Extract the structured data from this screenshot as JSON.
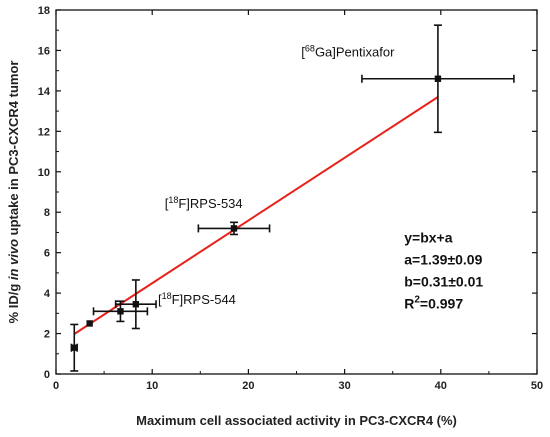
{
  "chart_data": {
    "type": "scatter",
    "xlabel": "Maximum cell associated activity in PC3-CXCR4 (%)",
    "ylabel": {
      "prefix": "% ID/g ",
      "italic": "in vivo",
      "suffix": " uptake in PC3-CXCR4 tumor"
    },
    "xlim": [
      0,
      50
    ],
    "ylim": [
      0,
      18
    ],
    "x_ticks": [
      0,
      10,
      20,
      30,
      40,
      50
    ],
    "y_ticks": [
      0,
      2,
      4,
      6,
      8,
      10,
      12,
      14,
      16,
      18
    ],
    "grid": false,
    "points": [
      {
        "x": 1.9,
        "y": 1.3,
        "xerr": 0.3,
        "yerr": 1.15
      },
      {
        "x": 3.5,
        "y": 2.5,
        "xerr": 0,
        "yerr": 0
      },
      {
        "x": 6.7,
        "y": 3.1,
        "xerr": 2.8,
        "yerr": 0.5
      },
      {
        "x": 8.3,
        "y": 3.45,
        "xerr": 2.1,
        "yerr": 1.2
      },
      {
        "x": 18.5,
        "y": 7.2,
        "xerr": 3.7,
        "yerr": 0.3
      },
      {
        "x": 39.7,
        "y": 14.6,
        "xerr": 7.9,
        "yerr": 2.65
      }
    ],
    "fit_line": {
      "color": "#e8211b",
      "x_start": 1.9,
      "x_end": 39.7,
      "slope": 0.31,
      "intercept": 1.39
    },
    "annotations": [
      {
        "sup": "68",
        "prefix": "[",
        "suffix": "Ga]Pentixafor",
        "x": 25.5,
        "y": 15.7
      },
      {
        "sup": "18",
        "prefix": "[",
        "suffix": "F]RPS-534",
        "x": 11.3,
        "y": 8.2
      },
      {
        "sup": "18",
        "prefix": "[",
        "suffix": "F]RPS-544",
        "x": 10.6,
        "y": 3.45
      }
    ],
    "fit_equation": [
      "y=bx+a",
      "a=1.39±0.09",
      "b=0.31±0.01",
      {
        "prefix": "R",
        "sup": "2",
        "suffix": "=0.997"
      }
    ],
    "marker_color": "#111111",
    "errorbar_color": "#111111"
  }
}
